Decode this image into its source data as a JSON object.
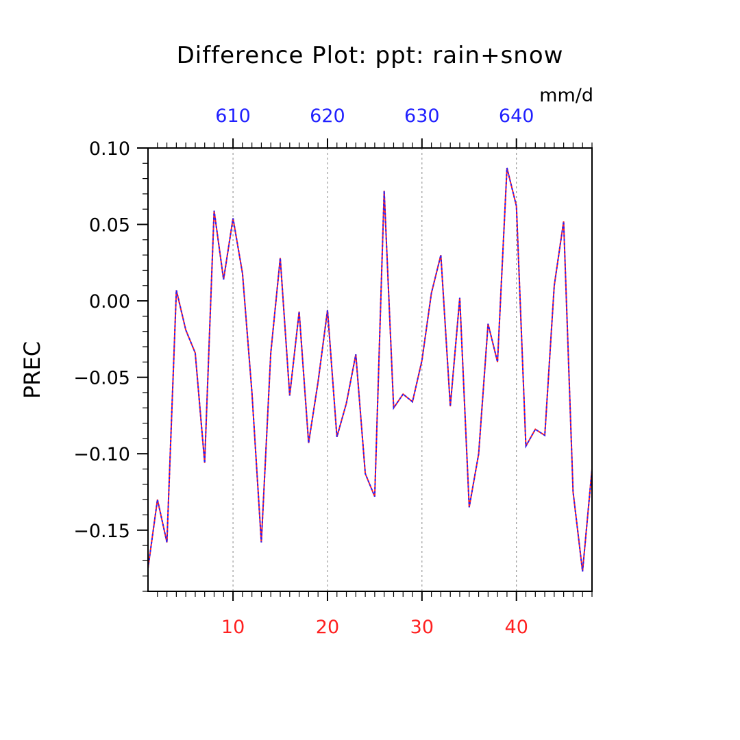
{
  "chart_data": {
    "type": "line",
    "title": "Difference Plot: ppt: rain+snow",
    "units": "mm/d",
    "ylabel": "PREC",
    "xlim": [
      1,
      48
    ],
    "ylim": [
      -0.19,
      0.1
    ],
    "yticks": [
      {
        "value": 0.1,
        "label": "0.10"
      },
      {
        "value": 0.05,
        "label": "0.05"
      },
      {
        "value": 0.0,
        "label": "0.00"
      },
      {
        "value": -0.05,
        "label": "−0.05"
      },
      {
        "value": -0.1,
        "label": "−0.10"
      },
      {
        "value": -0.15,
        "label": "−0.15"
      }
    ],
    "xticks_bottom": [
      {
        "value": 10,
        "label": "10"
      },
      {
        "value": 20,
        "label": "20"
      },
      {
        "value": 30,
        "label": "30"
      },
      {
        "value": 40,
        "label": "40"
      }
    ],
    "xticks_top": [
      {
        "value": 10,
        "label": "610"
      },
      {
        "value": 20,
        "label": "620"
      },
      {
        "value": 30,
        "label": "630"
      },
      {
        "value": 40,
        "label": "640"
      }
    ],
    "colors": {
      "bottom_axis": "#ff2020",
      "top_axis": "#2020ff",
      "series_a": "#ff2020",
      "series_b": "#2020ff",
      "grid": "#888888"
    },
    "grid": "vertical dashed at major x ticks",
    "x": [
      1,
      2,
      3,
      4,
      5,
      6,
      7,
      8,
      9,
      10,
      11,
      12,
      13,
      14,
      15,
      16,
      17,
      18,
      19,
      20,
      21,
      22,
      23,
      24,
      25,
      26,
      27,
      28,
      29,
      30,
      31,
      32,
      33,
      34,
      35,
      36,
      37,
      38,
      39,
      40,
      41,
      42,
      43,
      44,
      45,
      46,
      47,
      48
    ],
    "series": [
      {
        "values": [
          -0.175,
          -0.13,
          -0.158,
          0.007,
          -0.019,
          -0.034,
          -0.106,
          0.059,
          0.014,
          0.054,
          0.018,
          -0.06,
          -0.158,
          -0.034,
          0.028,
          -0.062,
          -0.007,
          -0.093,
          -0.053,
          -0.006,
          -0.089,
          -0.067,
          -0.035,
          -0.113,
          -0.128,
          0.072,
          -0.07,
          -0.061,
          -0.066,
          -0.039,
          0.005,
          0.03,
          -0.069,
          0.002,
          -0.135,
          -0.1,
          -0.015,
          -0.04,
          0.087,
          0.062,
          -0.095,
          -0.084,
          -0.088,
          0.01,
          0.052,
          -0.125,
          -0.177,
          -0.11
        ]
      }
    ]
  }
}
